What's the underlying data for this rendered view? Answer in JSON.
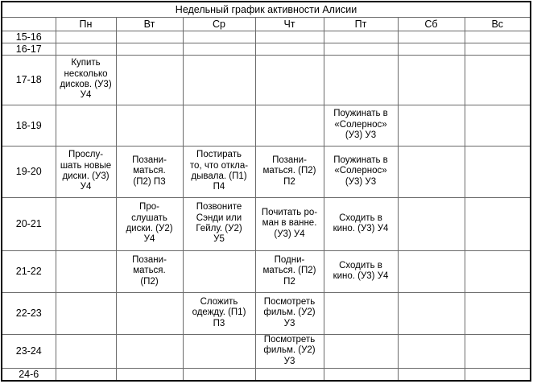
{
  "title": "Недельный график активности Алисии",
  "day_headers": [
    "Пн",
    "Вт",
    "Ср",
    "Чт",
    "Пт",
    "Сб",
    "Вс"
  ],
  "time_rows": [
    {
      "time": "15-16",
      "cells": [
        "",
        "",
        "",
        "",
        "",
        "",
        ""
      ]
    },
    {
      "time": "16-17",
      "cells": [
        "",
        "",
        "",
        "",
        "",
        "",
        ""
      ]
    },
    {
      "time": "17-18",
      "cells": [
        "Купить\nнесколько\nдисков. (У3)\nУ4",
        "",
        "",
        "",
        "",
        "",
        ""
      ]
    },
    {
      "time": "18-19",
      "cells": [
        "",
        "",
        "",
        "",
        "Поужинать в\n«Солернос»\n(У3) У3",
        "",
        ""
      ]
    },
    {
      "time": "19-20",
      "cells": [
        "Прослу-\nшать новые\nдиски. (У3)\nУ4",
        "Позани-\nматься.\n(П2) П3",
        "Постирать\nто, что откла-\nдывала. (П1)\nП4",
        "Позани-\nматься. (П2)\nП2",
        "Поужинать в\n«Солернос»\n(У3) У3",
        "",
        ""
      ]
    },
    {
      "time": "20-21",
      "cells": [
        "",
        "Про-\nслушать\nдиски. (У2)\nУ4",
        "Позвоните\nСэнди или\nГейлу. (У2)\nУ5",
        "Почитать ро-\nман в ванне.\n(У3) У4",
        "Сходить в\nкино. (У3) У4",
        "",
        ""
      ]
    },
    {
      "time": "21-22",
      "cells": [
        "",
        "Позани-\nматься.\n(П2)",
        "",
        "Подни-\nматься. (П2)\nП2",
        "Сходить в\nкино. (У3) У4",
        "",
        ""
      ]
    },
    {
      "time": "22-23",
      "cells": [
        "",
        "",
        "Сложить\nодежду. (П1)\nП3",
        "Посмотреть\nфильм. (У2)\nУ3",
        "",
        "",
        ""
      ]
    },
    {
      "time": "23-24",
      "cells": [
        "",
        "",
        "",
        "Посмотреть\nфильм. (У2)\nУ3",
        "",
        "",
        ""
      ]
    },
    {
      "time": "24-6",
      "cells": [
        "",
        "",
        "",
        "",
        "",
        "",
        ""
      ]
    }
  ],
  "colors": {
    "background": "#ffffff",
    "grid_line": "#6b6b6b",
    "outer_border": "#000000",
    "text": "#000000"
  }
}
